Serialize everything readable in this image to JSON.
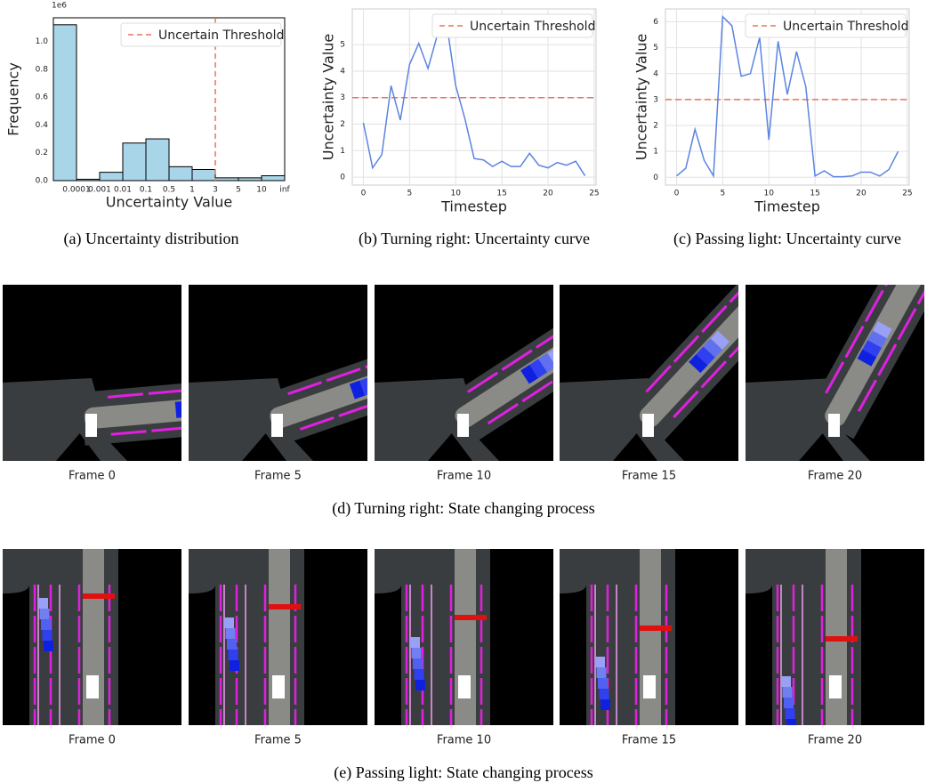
{
  "chart_data": [
    {
      "type": "histogram",
      "caption": "(a) Uncertainty distribution",
      "xlabel": "Uncertainty Value",
      "ylabel": "Frequency",
      "y_offset_label": "1e6",
      "bins": [
        null,
        "0.0001",
        "0.001",
        "0.01",
        "0.1",
        "0.5",
        "1",
        "3",
        "5",
        "10",
        "inf"
      ],
      "values": [
        1.12,
        0.01,
        0.06,
        0.27,
        0.3,
        0.1,
        0.08,
        0.02,
        0.02,
        0.035
      ],
      "color": "#a8d5e8",
      "ylim": [
        0,
        1.17
      ],
      "yticks": [
        {
          "value": 0,
          "label": "0.0"
        },
        0.2,
        0.4,
        0.6,
        0.8,
        {
          "value": 1,
          "label": "1.0"
        }
      ],
      "threshold": {
        "label": "Uncertain Threshold",
        "value": "3",
        "color": "#e8735a"
      },
      "legend": "upper right",
      "grid": false
    },
    {
      "type": "line",
      "caption": "(b) Turning right: Uncertainty curve",
      "xlabel": "Timestep",
      "ylabel": "Uncertainty Value",
      "x": [
        0,
        1,
        2,
        3,
        4,
        5,
        6,
        7,
        8,
        9,
        10,
        11,
        12,
        13,
        14,
        15,
        16,
        17,
        18,
        19,
        20,
        21,
        22,
        23,
        24
      ],
      "values": [
        2.05,
        0.35,
        0.85,
        3.45,
        2.15,
        4.25,
        5.05,
        4.1,
        5.35,
        5.85,
        3.45,
        2.2,
        0.7,
        0.65,
        0.4,
        0.6,
        0.4,
        0.4,
        0.9,
        0.45,
        0.35,
        0.55,
        0.45,
        0.6,
        0.05
      ],
      "color": "#5b84e0",
      "xlim": [
        -1.2,
        25.2
      ],
      "ylim": [
        -0.3,
        6.35
      ],
      "xticks": [
        0,
        5,
        10,
        15,
        20,
        25
      ],
      "yticks": [
        0,
        1,
        2,
        3,
        4,
        5
      ],
      "threshold": {
        "label": "Uncertain Threshold",
        "value": 3,
        "color": "#e8735a"
      },
      "legend": "upper right",
      "grid": true
    },
    {
      "type": "line",
      "caption": "(c) Passing light: Uncertainty curve",
      "xlabel": "Timestep",
      "ylabel": "Uncertainty Value",
      "x": [
        0,
        1,
        2,
        3,
        4,
        5,
        6,
        7,
        8,
        9,
        10,
        11,
        12,
        13,
        14,
        15,
        16,
        17,
        18,
        19,
        20,
        21,
        22,
        23,
        24
      ],
      "values": [
        0.05,
        0.35,
        1.85,
        0.65,
        0.05,
        6.2,
        5.85,
        3.9,
        4.0,
        5.4,
        1.45,
        5.25,
        3.2,
        4.85,
        3.5,
        0.05,
        0.25,
        0.02,
        0.02,
        0.05,
        0.2,
        0.2,
        0.05,
        0.3,
        1.0
      ],
      "color": "#5b84e0",
      "xlim": [
        -1.2,
        25.2
      ],
      "ylim": [
        -0.3,
        6.5
      ],
      "xticks": [
        0,
        5,
        10,
        15,
        20,
        25
      ],
      "yticks": [
        0,
        1,
        2,
        3,
        4,
        5,
        6
      ],
      "threshold": {
        "label": "Uncertain Threshold",
        "value": 3,
        "color": "#e8735a"
      },
      "legend": "upper right",
      "grid": true
    }
  ],
  "turning": {
    "frames": [
      "Frame 0",
      "Frame 5",
      "Frame 10",
      "Frame 15",
      "Frame 20"
    ],
    "caption": "(d) Turning right: State changing process"
  },
  "passing": {
    "frames": [
      "Frame 0",
      "Frame 5",
      "Frame 10",
      "Frame 15",
      "Frame 20"
    ],
    "caption": "(e) Passing light: State changing process"
  }
}
